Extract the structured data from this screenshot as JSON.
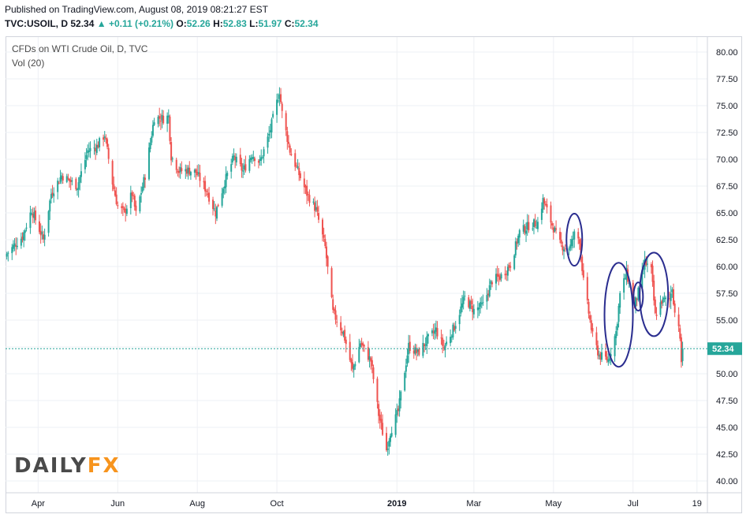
{
  "header": {
    "published": "Published on TradingView.com, August 08, 2019 08:21:27 EST",
    "symbol": "TVC:USOIL, D",
    "last": "52.34",
    "change": "+0.11 (+0.21%)",
    "open_label": "O:",
    "open": "52.26",
    "high_label": "H:",
    "high": "52.83",
    "low_label": "L:",
    "low": "51.97",
    "close_label": "C:",
    "close": "52.34"
  },
  "legend": {
    "title": "CFDs on WTI Crude Oil, D, TVC",
    "indicator": "Vol (20)"
  },
  "logo": {
    "daily": "DAILY",
    "fx": "FX"
  },
  "colors": {
    "up": "#26a69a",
    "down": "#ef5350",
    "annotation": "#2a2d8f",
    "price_line": "#26a69a",
    "grid": "#eef0f4"
  },
  "chart_data": {
    "type": "candlestick",
    "title": "CFDs on WTI Crude Oil, D, TVC",
    "xlabel": "",
    "ylabel": "",
    "ylim": [
      38.9,
      81.4
    ],
    "y_ticks": [
      "80.00",
      "77.50",
      "75.00",
      "72.50",
      "70.00",
      "67.50",
      "65.00",
      "62.50",
      "60.00",
      "57.50",
      "55.00",
      "52.50",
      "50.00",
      "47.50",
      "45.00",
      "42.50",
      "40.00"
    ],
    "x_ticks": [
      "Apr",
      "Jun",
      "Aug",
      "Oct",
      "2019",
      "Mar",
      "May",
      "Jul",
      "19"
    ],
    "last_price_label": "52.34",
    "grid": true,
    "anchors": [
      [
        "2018-03-08",
        61.2
      ],
      [
        "2018-03-20",
        62.8
      ],
      [
        "2018-03-27",
        65.3
      ],
      [
        "2018-04-05",
        62.5
      ],
      [
        "2018-04-11",
        66.8
      ],
      [
        "2018-04-19",
        68.5
      ],
      [
        "2018-05-01",
        67.5
      ],
      [
        "2018-05-09",
        70.8
      ],
      [
        "2018-05-16",
        71.2
      ],
      [
        "2018-05-22",
        72.3
      ],
      [
        "2018-05-28",
        67.8
      ],
      [
        "2018-06-01",
        65.6
      ],
      [
        "2018-06-06",
        65.0
      ],
      [
        "2018-06-12",
        66.8
      ],
      [
        "2018-06-15",
        64.9
      ],
      [
        "2018-06-22",
        68.5
      ],
      [
        "2018-06-29",
        73.9
      ],
      [
        "2018-07-06",
        73.8
      ],
      [
        "2018-07-10",
        74.0
      ],
      [
        "2018-07-12",
        70.3
      ],
      [
        "2018-07-18",
        68.9
      ],
      [
        "2018-07-24",
        69.0
      ],
      [
        "2018-07-31",
        68.8
      ],
      [
        "2018-08-08",
        67.1
      ],
      [
        "2018-08-15",
        65.0
      ],
      [
        "2018-08-22",
        67.9
      ],
      [
        "2018-08-29",
        70.2
      ],
      [
        "2018-09-05",
        68.9
      ],
      [
        "2018-09-12",
        70.5
      ],
      [
        "2018-09-18",
        69.7
      ],
      [
        "2018-09-25",
        72.3
      ],
      [
        "2018-10-01",
        75.3
      ],
      [
        "2018-10-03",
        76.4
      ],
      [
        "2018-10-05",
        74.3
      ],
      [
        "2018-10-11",
        70.8
      ],
      [
        "2018-10-18",
        68.6
      ],
      [
        "2018-10-24",
        66.8
      ],
      [
        "2018-10-31",
        65.3
      ],
      [
        "2018-11-07",
        61.8
      ],
      [
        "2018-11-13",
        55.7
      ],
      [
        "2018-11-21",
        53.8
      ],
      [
        "2018-11-28",
        50.3
      ],
      [
        "2018-12-04",
        52.9
      ],
      [
        "2018-12-12",
        51.2
      ],
      [
        "2018-12-18",
        46.2
      ],
      [
        "2018-12-24",
        42.9
      ],
      [
        "2018-12-27",
        44.6
      ],
      [
        "2019-01-02",
        46.5
      ],
      [
        "2019-01-10",
        52.6
      ],
      [
        "2019-01-17",
        51.9
      ],
      [
        "2019-01-24",
        53.1
      ],
      [
        "2019-01-31",
        54.1
      ],
      [
        "2019-02-06",
        52.4
      ],
      [
        "2019-02-14",
        54.4
      ],
      [
        "2019-02-22",
        57.1
      ],
      [
        "2019-03-01",
        55.9
      ],
      [
        "2019-03-08",
        56.4
      ],
      [
        "2019-03-15",
        58.7
      ],
      [
        "2019-03-22",
        59.1
      ],
      [
        "2019-03-29",
        60.2
      ],
      [
        "2019-04-05",
        63.2
      ],
      [
        "2019-04-12",
        63.8
      ],
      [
        "2019-04-19",
        64.1
      ],
      [
        "2019-04-23",
        66.2
      ],
      [
        "2019-04-30",
        63.9
      ],
      [
        "2019-05-06",
        62.1
      ],
      [
        "2019-05-10",
        61.7
      ],
      [
        "2019-05-14",
        61.9
      ],
      [
        "2019-05-17",
        63.0
      ],
      [
        "2019-05-21",
        62.5
      ],
      [
        "2019-05-24",
        58.6
      ],
      [
        "2019-05-31",
        53.5
      ],
      [
        "2019-06-05",
        51.7
      ],
      [
        "2019-06-12",
        51.3
      ],
      [
        "2019-06-18",
        53.9
      ],
      [
        "2019-06-21",
        57.4
      ],
      [
        "2019-06-26",
        59.4
      ],
      [
        "2019-07-02",
        56.3
      ],
      [
        "2019-07-05",
        57.6
      ],
      [
        "2019-07-10",
        60.4
      ],
      [
        "2019-07-15",
        59.6
      ],
      [
        "2019-07-18",
        55.4
      ],
      [
        "2019-07-23",
        56.8
      ],
      [
        "2019-07-29",
        56.9
      ],
      [
        "2019-07-31",
        58.1
      ],
      [
        "2019-08-02",
        55.7
      ],
      [
        "2019-08-05",
        54.7
      ],
      [
        "2019-08-07",
        51.1
      ],
      [
        "2019-08-08",
        52.34
      ]
    ],
    "annotations": [
      {
        "type": "ellipse",
        "date": "2019-05-17",
        "cy": 62.5
      },
      {
        "type": "ellipse",
        "date": "2019-06-20",
        "cy": 55.5
      },
      {
        "type": "ellipse",
        "date": "2019-07-05",
        "cy": 57.2
      },
      {
        "type": "ellipse",
        "date": "2019-07-17",
        "cy": 57.4
      }
    ]
  }
}
